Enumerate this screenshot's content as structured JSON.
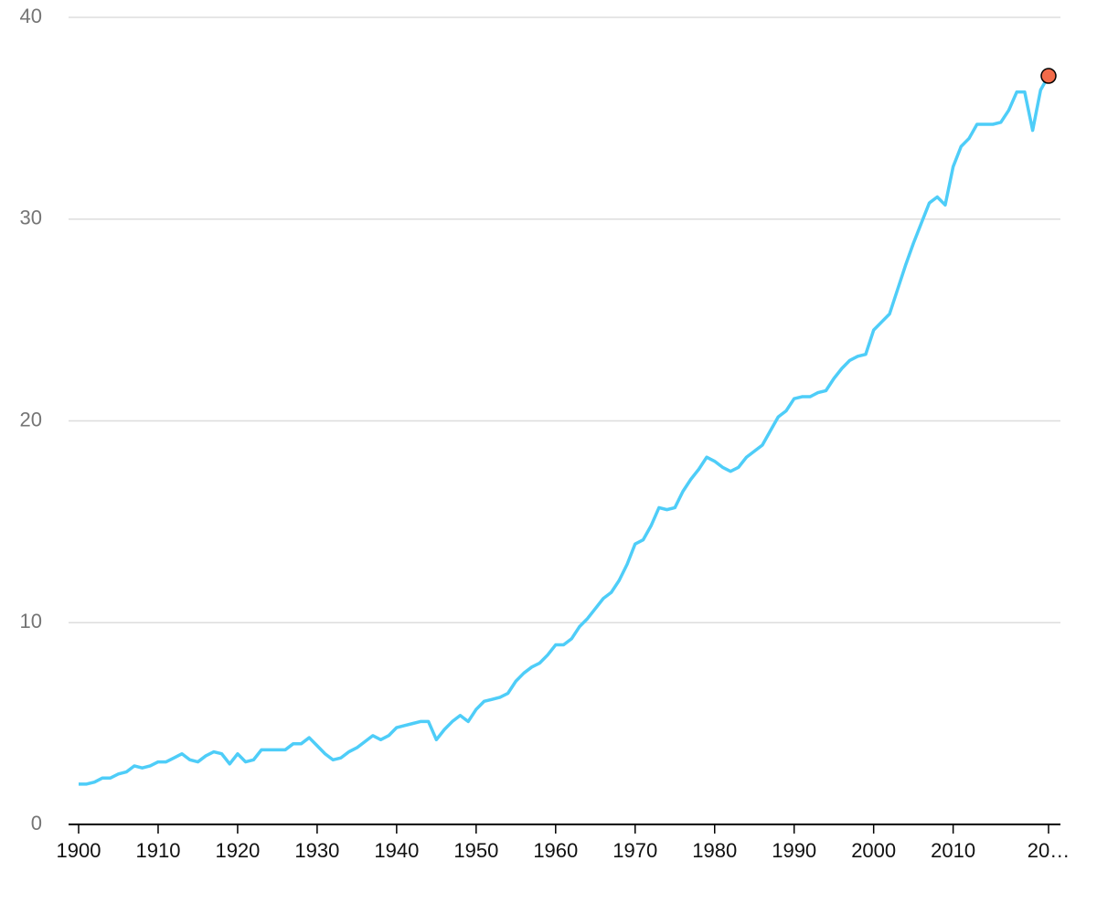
{
  "chart_data": {
    "type": "line",
    "x": [
      1900,
      1901,
      1902,
      1903,
      1904,
      1905,
      1906,
      1907,
      1908,
      1909,
      1910,
      1911,
      1912,
      1913,
      1914,
      1915,
      1916,
      1917,
      1918,
      1919,
      1920,
      1921,
      1922,
      1923,
      1924,
      1925,
      1926,
      1927,
      1928,
      1929,
      1930,
      1931,
      1932,
      1933,
      1934,
      1935,
      1936,
      1937,
      1938,
      1939,
      1940,
      1941,
      1942,
      1943,
      1944,
      1945,
      1946,
      1947,
      1948,
      1949,
      1950,
      1951,
      1952,
      1953,
      1954,
      1955,
      1956,
      1957,
      1958,
      1959,
      1960,
      1961,
      1962,
      1963,
      1964,
      1965,
      1966,
      1967,
      1968,
      1969,
      1970,
      1971,
      1972,
      1973,
      1974,
      1975,
      1976,
      1977,
      1978,
      1979,
      1980,
      1981,
      1982,
      1983,
      1984,
      1985,
      1986,
      1987,
      1988,
      1989,
      1990,
      1991,
      1992,
      1993,
      1994,
      1995,
      1996,
      1997,
      1998,
      1999,
      2000,
      2001,
      2002,
      2003,
      2004,
      2005,
      2006,
      2007,
      2008,
      2009,
      2010,
      2011,
      2012,
      2013,
      2014,
      2015,
      2016,
      2017,
      2018,
      2019,
      2020,
      2021,
      2022
    ],
    "series": [
      {
        "color": "#4ecdf8",
        "values": [
          2.0,
          2.0,
          2.1,
          2.3,
          2.3,
          2.5,
          2.6,
          2.9,
          2.8,
          2.9,
          3.1,
          3.1,
          3.3,
          3.5,
          3.2,
          3.1,
          3.4,
          3.6,
          3.5,
          3.0,
          3.5,
          3.1,
          3.2,
          3.7,
          3.7,
          3.7,
          3.7,
          4.0,
          4.0,
          4.3,
          3.9,
          3.5,
          3.2,
          3.3,
          3.6,
          3.8,
          4.1,
          4.4,
          4.2,
          4.4,
          4.8,
          4.9,
          5.0,
          5.1,
          5.1,
          4.2,
          4.7,
          5.1,
          5.4,
          5.1,
          5.7,
          6.1,
          6.2,
          6.3,
          6.5,
          7.1,
          7.5,
          7.8,
          8.0,
          8.4,
          8.9,
          8.9,
          9.2,
          9.8,
          10.2,
          10.7,
          11.2,
          11.5,
          12.1,
          12.9,
          13.9,
          14.1,
          14.8,
          15.7,
          15.6,
          15.7,
          16.5,
          17.1,
          17.6,
          18.2,
          18.0,
          17.7,
          17.5,
          17.7,
          18.2,
          18.5,
          18.8,
          19.5,
          20.2,
          20.5,
          21.1,
          21.2,
          21.2,
          21.4,
          21.5,
          22.1,
          22.6,
          23.0,
          23.2,
          23.3,
          24.5,
          24.9,
          25.3,
          26.5,
          27.7,
          28.8,
          29.8,
          30.8,
          31.1,
          30.7,
          32.6,
          33.6,
          34.0,
          34.7,
          34.7,
          34.7,
          34.8,
          35.4,
          36.3,
          36.3,
          34.4,
          36.4,
          37.1
        ]
      }
    ],
    "end_marker_color": "#f26b4a",
    "xlim": [
      1900,
      2022
    ],
    "xticks": [
      1900,
      1910,
      1920,
      1930,
      1940,
      1950,
      1960,
      1970,
      1980,
      1990,
      2000,
      2010,
      {
        "value": 2022,
        "label": "20…"
      }
    ],
    "ylim": [
      0,
      40
    ],
    "yticks": [
      0,
      10,
      20,
      30,
      40
    ],
    "grid": true
  }
}
